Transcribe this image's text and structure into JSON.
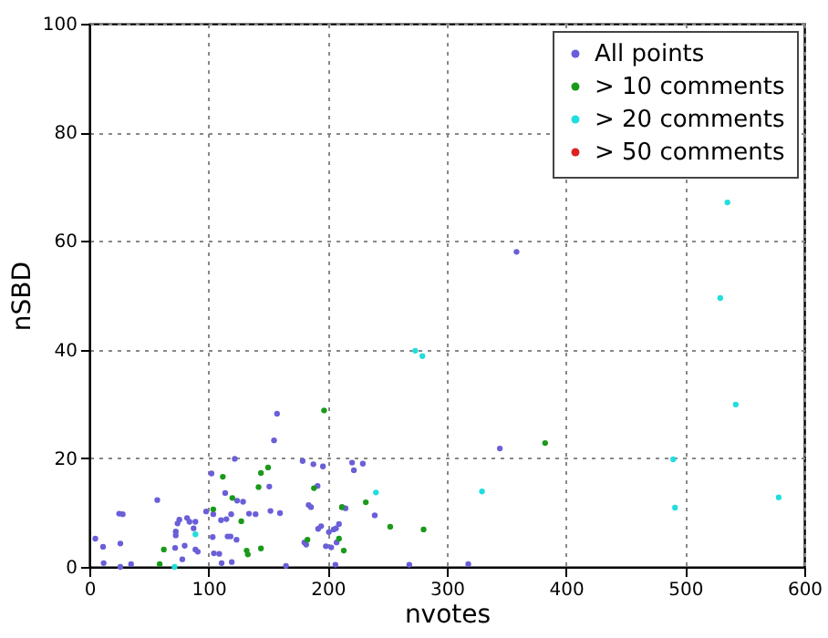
{
  "chart_data": {
    "type": "scatter",
    "xlabel": "nvotes",
    "ylabel": "nSBD",
    "xlim": [
      0,
      600
    ],
    "ylim": [
      0,
      100
    ],
    "xticks": [
      0,
      100,
      200,
      300,
      400,
      500,
      600
    ],
    "yticks": [
      0,
      20,
      40,
      60,
      80,
      100
    ],
    "grid": true,
    "legend": "top right",
    "marker": "circle",
    "series": [
      {
        "name": "All points",
        "color": "#6a5fd8",
        "x": [
          5,
          11.5,
          25,
          28,
          26,
          12,
          26,
          35,
          57,
          74,
          72.5,
          72.5,
          75.5,
          82,
          84,
          89,
          87.5,
          72,
          80,
          89,
          78,
          91,
          98,
          102.5,
          103.5,
          104.5,
          109,
          104,
          110.5,
          115,
          119,
          114,
          122,
          124,
          129,
          116,
          118.5,
          123.5,
          111,
          119.5,
          134,
          139.5,
          151,
          152,
          155,
          157.5,
          160,
          165,
          179,
          188,
          180.5,
          184,
          192,
          194.5,
          196,
          198.5,
          220.5,
          229.5,
          222,
          239.5,
          212,
          215,
          209.5,
          201,
          205,
          207,
          203,
          207.5,
          206.5,
          268.5,
          318,
          344.5,
          186,
          191.5,
          182,
          358.5
        ],
        "values": [
          5.2,
          3.7,
          9.8,
          9.7,
          4.3,
          0.7,
          0,
          0.5,
          12.3,
          8,
          6.5,
          5.8,
          8.7,
          9,
          8.3,
          8.3,
          7.1,
          3.5,
          3.9,
          3.2,
          1.4,
          2.8,
          10.2,
          17.2,
          5.5,
          2.5,
          2.4,
          9.7,
          8.6,
          8.8,
          9.7,
          13.6,
          19.9,
          12.2,
          12,
          5.6,
          5.6,
          5,
          0.7,
          0.9,
          9.8,
          9.7,
          14.8,
          10.3,
          23.3,
          28.2,
          9.9,
          0.2,
          19.5,
          18.9,
          4.5,
          11.4,
          7,
          7.5,
          18.5,
          3.8,
          19.2,
          19,
          17.8,
          9.5,
          11,
          10.8,
          7.9,
          6.4,
          6.9,
          7.1,
          3.6,
          4.5,
          0.4,
          0.4,
          0.5,
          21.8,
          11,
          14.9,
          4.1,
          58
        ]
      },
      {
        "name": "> 10 comments",
        "color": "#1a9a1a",
        "x": [
          62.5,
          104,
          112,
          120,
          127.5,
          132,
          133,
          144,
          142,
          144,
          150,
          183,
          188.5,
          197,
          59,
          232,
          252.5,
          280.5,
          209.5,
          213.5,
          212,
          382.5
        ],
        "values": [
          3.2,
          10.6,
          16.6,
          12.7,
          8.4,
          3,
          2.3,
          3.4,
          14.7,
          17.3,
          18.3,
          5,
          14.5,
          28.8,
          0.5,
          11.9,
          7.4,
          6.9,
          5.2,
          3,
          11,
          22.8
        ]
      },
      {
        "name": "> 20 comments",
        "color": "#22dddd",
        "x": [
          89,
          71.5,
          240.5,
          329.5,
          273.5,
          279.5,
          535.5,
          529.5,
          542.5,
          490,
          491.5,
          578.5
        ],
        "values": [
          6,
          0,
          13.7,
          13.9,
          39.8,
          38.8,
          67.1,
          49.5,
          29.9,
          19.8,
          10.9,
          12.8
        ]
      },
      {
        "name": "> 50 comments",
        "color": "#dd2222"
      }
    ]
  }
}
